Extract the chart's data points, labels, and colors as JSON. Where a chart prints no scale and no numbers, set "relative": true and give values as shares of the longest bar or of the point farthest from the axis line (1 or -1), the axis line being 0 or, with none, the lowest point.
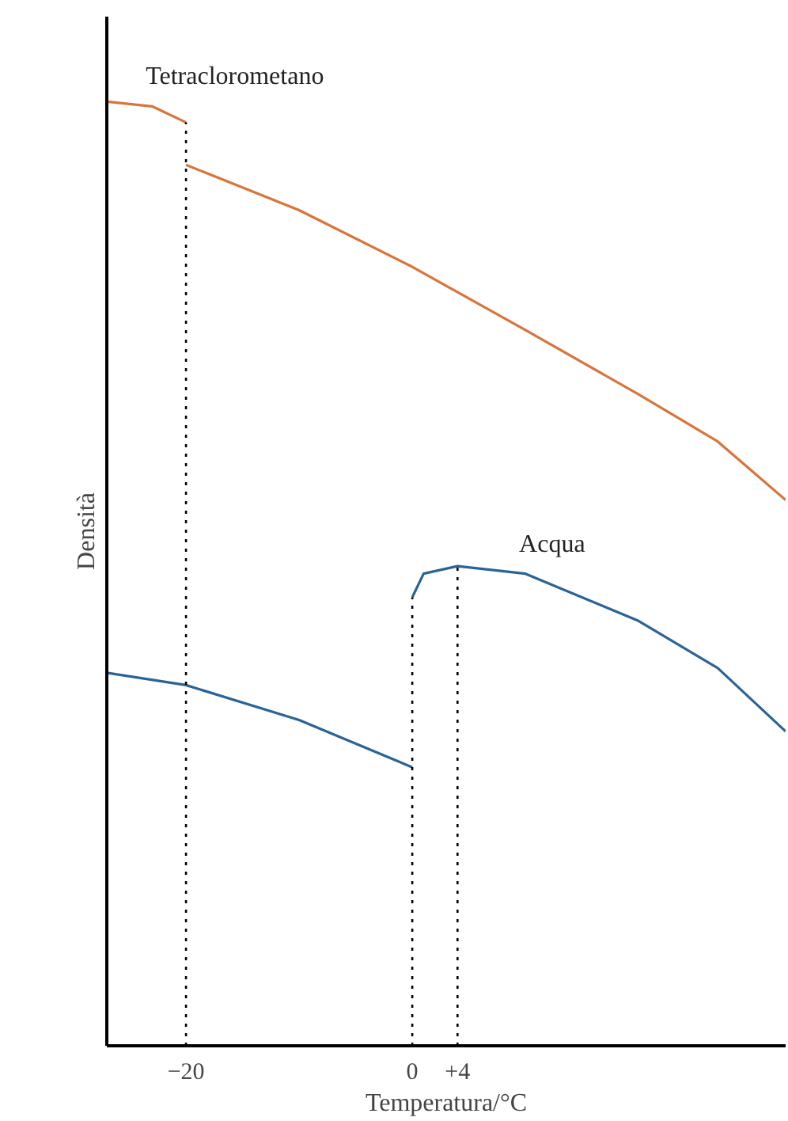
{
  "chart_data": {
    "type": "line",
    "xlabel": "Temperatura/°C",
    "ylabel": "Densità",
    "relative": true,
    "xlim": [
      -27,
      33
    ],
    "xticks": [
      {
        "value": -20,
        "label": "−20"
      },
      0,
      {
        "value": 4,
        "label": "+4"
      }
    ],
    "marker": "none",
    "line_style": "solid",
    "ref_lines": [
      {
        "axis": "x",
        "value": -20,
        "color": "#000000",
        "line_style": "dotted"
      },
      {
        "axis": "x",
        "value": 0,
        "color": "#000000",
        "line_style": "dotted"
      },
      {
        "axis": "x",
        "value": 4,
        "color": "#000000",
        "line_style": "dotted"
      }
    ],
    "series": [
      {
        "name": "Tetraclorometano",
        "color": "#d9743a",
        "x": [
          -27,
          -23,
          -20
        ],
        "values": [
          1.0,
          0.995,
          0.978
        ]
      },
      {
        "color": "#d9743a",
        "x": [
          -20,
          -10,
          0,
          10,
          20,
          27,
          33
        ],
        "values": [
          0.933,
          0.885,
          0.825,
          0.758,
          0.69,
          0.64,
          0.578
        ]
      },
      {
        "color": "#2a6496",
        "x": [
          -27,
          -20,
          -10,
          0
        ],
        "values": [
          0.395,
          0.382,
          0.345,
          0.295
        ]
      },
      {
        "name": "Acqua",
        "color": "#2a6496",
        "x": [
          0,
          1,
          4,
          10,
          20,
          27,
          33
        ],
        "values": [
          0.475,
          0.5,
          0.508,
          0.5,
          0.45,
          0.4,
          0.333
        ]
      }
    ]
  }
}
